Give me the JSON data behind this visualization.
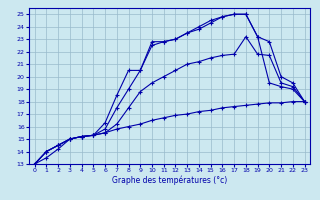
{
  "xlabel": "Graphe des températures (°c)",
  "background_color": "#cce8f0",
  "line_color": "#0000aa",
  "grid_color": "#99bbcc",
  "xlim": [
    -0.5,
    23.5
  ],
  "ylim": [
    13,
    25.5
  ],
  "x_ticks": [
    0,
    1,
    2,
    3,
    4,
    5,
    6,
    7,
    8,
    9,
    10,
    11,
    12,
    13,
    14,
    15,
    16,
    17,
    18,
    19,
    20,
    21,
    22,
    23
  ],
  "y_ticks": [
    13,
    14,
    15,
    16,
    17,
    18,
    19,
    20,
    21,
    22,
    23,
    24,
    25
  ],
  "lines": [
    {
      "x": [
        0,
        1,
        2,
        3,
        4,
        5,
        6,
        7,
        8,
        9,
        10,
        11,
        12,
        13,
        14,
        15,
        16,
        17,
        18,
        19,
        20,
        21,
        22,
        23
      ],
      "y": [
        13,
        14,
        14.5,
        15,
        15.2,
        15.3,
        16.3,
        18.5,
        20.5,
        20.5,
        22.8,
        22.8,
        23.0,
        23.5,
        24.0,
        24.5,
        24.8,
        25.0,
        25.0,
        23.2,
        22.8,
        20.0,
        19.5,
        18.0
      ]
    },
    {
      "x": [
        0,
        1,
        2,
        3,
        4,
        5,
        6,
        7,
        8,
        9,
        10,
        11,
        12,
        13,
        14,
        15,
        16,
        17,
        18,
        19,
        20,
        21,
        22,
        23
      ],
      "y": [
        13,
        14,
        14.5,
        15,
        15.2,
        15.3,
        15.8,
        17.5,
        19.0,
        20.5,
        22.5,
        22.8,
        23.0,
        23.5,
        23.8,
        24.3,
        24.8,
        25.0,
        25.0,
        23.2,
        19.5,
        19.2,
        19.0,
        18.0
      ]
    },
    {
      "x": [
        0,
        1,
        2,
        3,
        4,
        5,
        6,
        7,
        8,
        9,
        10,
        11,
        12,
        13,
        14,
        15,
        16,
        17,
        18,
        19,
        20,
        21,
        22,
        23
      ],
      "y": [
        13,
        14,
        14.5,
        15,
        15.2,
        15.3,
        15.5,
        16.2,
        17.5,
        18.8,
        19.5,
        20.0,
        20.5,
        21.0,
        21.2,
        21.5,
        21.7,
        21.8,
        23.2,
        21.8,
        21.7,
        19.5,
        19.2,
        18.0
      ]
    },
    {
      "x": [
        0,
        1,
        2,
        3,
        4,
        5,
        6,
        7,
        8,
        9,
        10,
        11,
        12,
        13,
        14,
        15,
        16,
        17,
        18,
        19,
        20,
        21,
        22,
        23
      ],
      "y": [
        13,
        13.5,
        14.2,
        15.0,
        15.2,
        15.3,
        15.5,
        15.8,
        16.0,
        16.2,
        16.5,
        16.7,
        16.9,
        17.0,
        17.2,
        17.3,
        17.5,
        17.6,
        17.7,
        17.8,
        17.9,
        17.9,
        18.0,
        18.0
      ]
    }
  ]
}
